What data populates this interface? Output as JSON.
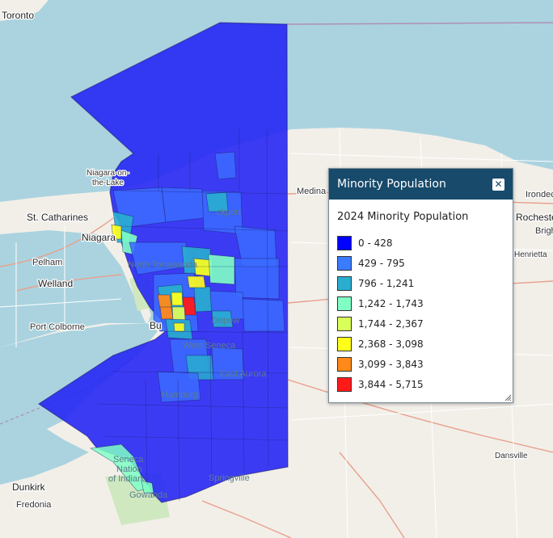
{
  "map": {
    "places": {
      "toronto": "Toronto",
      "niagara_on_the_lake_1": "Niagara-on-",
      "niagara_on_the_lake_2": "the-Lake",
      "st_catharines": "St. Catharines",
      "niagara_falls": "Niagara",
      "pelham": "Pelham",
      "welland": "Welland",
      "port_colborne": "Port Colborne",
      "dunkirk": "Dunkirk",
      "fredonia": "Fredonia",
      "medina": "Medina",
      "irondequoit": "Irondec",
      "rochester": "Rocheste",
      "brighton": "Brigh",
      "henrietta": "Henrietta",
      "dansville": "Dansville",
      "lockport": "ckport",
      "north_tonawanda": "North Tonawanda",
      "buffalo": "Bu",
      "depew": "Depew",
      "west_seneca": "West Seneca",
      "east_aurora": "East Aurora",
      "hamburg": "Hamburg",
      "springville": "Springville",
      "gowanda": "Gowanda",
      "seneca_nation_1": "Seneca",
      "seneca_nation_2": "Nation",
      "seneca_nation_3": "of Indian"
    }
  },
  "legend": {
    "title": "Minority Population",
    "close_label": "✕",
    "subtitle": "2024 Minority Population",
    "items": [
      {
        "label": "0 - 428",
        "color": "#0000ff"
      },
      {
        "label": "429 - 795",
        "color": "#3b7bff"
      },
      {
        "label": "796 - 1,241",
        "color": "#29aecf"
      },
      {
        "label": "1,242 - 1,743",
        "color": "#7fffc4"
      },
      {
        "label": "1,744 - 2,367",
        "color": "#d8ff5a"
      },
      {
        "label": "2,368 - 3,098",
        "color": "#ffff1a"
      },
      {
        "label": "3,099 - 3,843",
        "color": "#ff8a1a"
      },
      {
        "label": "3,844 - 5,715",
        "color": "#ff1a1a"
      }
    ]
  }
}
